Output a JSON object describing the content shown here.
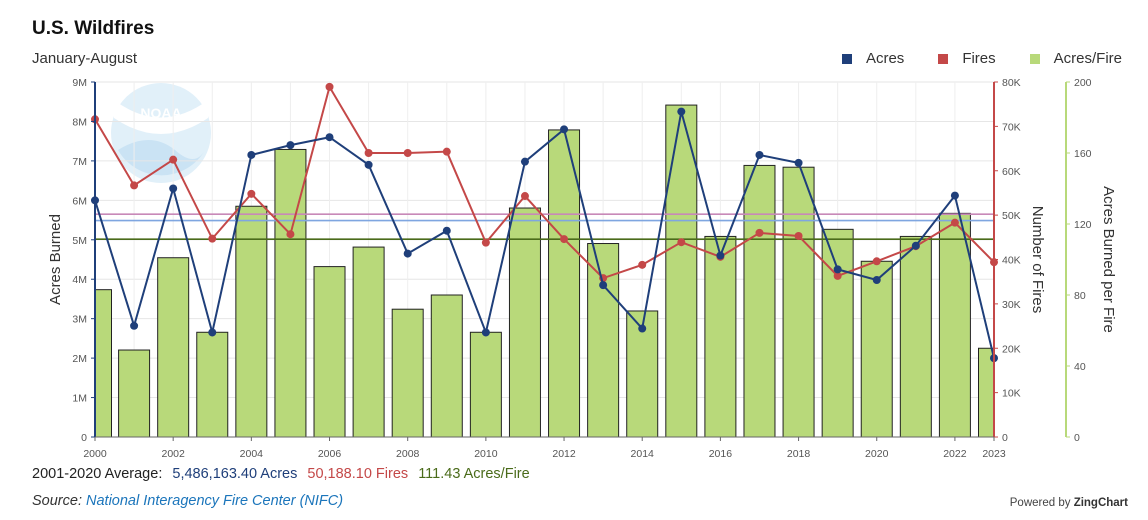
{
  "title": "U.S. Wildfires",
  "subtitle": "January-August",
  "legend": [
    {
      "label": "Acres",
      "color": "#1f3f7a"
    },
    {
      "label": "Fires",
      "color": "#c44848"
    },
    {
      "label": "Acres/Fire",
      "color": "#b8d97a"
    }
  ],
  "average": {
    "label": "2001-2020 Average:",
    "acres": "5,486,163.40 Acres",
    "fires": "50,188.10 Fires",
    "acres_per_fire": "111.43 Acres/Fire"
  },
  "source": {
    "label": "Source:",
    "link": "National Interagency Fire Center (NIFC)"
  },
  "powered_by": {
    "prefix": "Powered by",
    "brand": "ZingChart"
  },
  "logo_text": "NOAA",
  "chart_data": {
    "type": "bar",
    "x": [
      2000,
      2001,
      2002,
      2003,
      2004,
      2005,
      2006,
      2007,
      2008,
      2009,
      2010,
      2011,
      2012,
      2013,
      2014,
      2015,
      2016,
      2017,
      2018,
      2019,
      2020,
      2021,
      2022,
      2023
    ],
    "x_tick_labels": [
      "2000",
      "2002",
      "2004",
      "2006",
      "2008",
      "2010",
      "2012",
      "2014",
      "2016",
      "2018",
      "2020",
      "2022",
      "2023"
    ],
    "series": [
      {
        "name": "Acres Burned",
        "axis": "left",
        "type": "line",
        "values": [
          6000000,
          2820000,
          6300000,
          2650000,
          7150000,
          7400000,
          7600000,
          6900000,
          4650000,
          5230000,
          2650000,
          6980000,
          7800000,
          3850000,
          2750000,
          8250000,
          4600000,
          7150000,
          6950000,
          4250000,
          3980000,
          4850000,
          6120000,
          2000000
        ]
      },
      {
        "name": "Number of Fires",
        "axis": "right",
        "type": "line",
        "values": [
          71600,
          56700,
          62500,
          44700,
          54800,
          45700,
          78900,
          64000,
          64000,
          64300,
          43800,
          54300,
          44600,
          35800,
          38800,
          43900,
          40600,
          46000,
          45300,
          36300,
          39600,
          43000,
          48300,
          39400
        ]
      },
      {
        "name": "Acres/Fire",
        "axis": "far-right",
        "type": "bar",
        "values": [
          83,
          49,
          101,
          59,
          130,
          162,
          96,
          107,
          72,
          80,
          59,
          129,
          173,
          109,
          71,
          187,
          113,
          153,
          152,
          117,
          99,
          113,
          126,
          50
        ]
      }
    ],
    "averages": {
      "acres": 5486163.4,
      "fires": 50188.1,
      "acres_per_fire": 111.43
    },
    "extra_reference_lines": {
      "acres_upper": 5650000
    },
    "ylabel_left": "Acres Burned",
    "ylabel_right": "Number of Fires",
    "ylabel_far_right": "Acres Burned per Fire",
    "ylim_left": [
      0,
      9000000
    ],
    "ylim_right": [
      0,
      80000
    ],
    "ylim_far_right": [
      0,
      200
    ],
    "yticks_left": [
      "0",
      "1M",
      "2M",
      "3M",
      "4M",
      "5M",
      "6M",
      "7M",
      "8M",
      "9M"
    ],
    "yticks_right": [
      "0",
      "10K",
      "20K",
      "30K",
      "40K",
      "50K",
      "60K",
      "70K",
      "80K"
    ],
    "yticks_far_right": [
      "0",
      "40",
      "80",
      "120",
      "160",
      "200"
    ],
    "colors": {
      "acres": "#1f3f7a",
      "fires": "#c44848",
      "bars": "#b8d97a",
      "bar_border": "#222222",
      "avg_line": "#4a6b1a",
      "far_axis": "#b8d97a"
    },
    "grid": true,
    "legend_position": "top-right"
  }
}
